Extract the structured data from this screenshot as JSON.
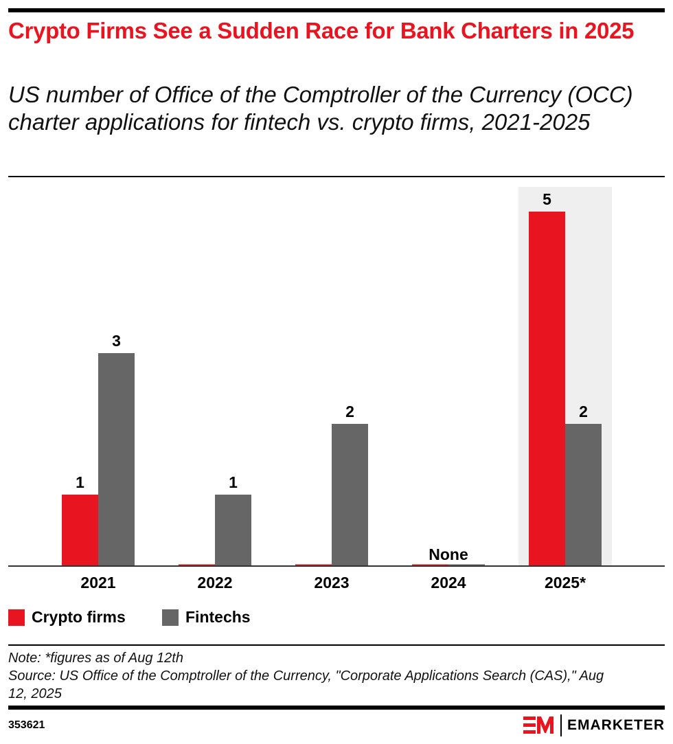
{
  "title": "Crypto Firms See a Sudden Race for Bank Charters in 2025",
  "subtitle": "US number of Office of the Comptroller of the Currency (OCC) charter applications for fintech vs. crypto firms, 2021-2025",
  "chart_data": {
    "type": "bar",
    "categories": [
      "2021",
      "2022",
      "2023",
      "2024",
      "2025*"
    ],
    "series": [
      {
        "name": "Crypto firms",
        "color": "#e8141f",
        "values": [
          1,
          0,
          0,
          0,
          5
        ],
        "labels": [
          "1",
          "",
          "",
          "",
          "5"
        ]
      },
      {
        "name": "Fintechs",
        "color": "#666666",
        "values": [
          3,
          1,
          2,
          0,
          2
        ],
        "labels": [
          "3",
          "1",
          "2",
          "",
          "2"
        ]
      }
    ],
    "annotations": [
      {
        "category": "2024",
        "text": "None"
      }
    ],
    "highlight_category": "2025*",
    "highlight_color": "#efefef",
    "ylim": [
      0,
      5.3
    ],
    "grid": false,
    "legend": "bottom-left"
  },
  "notes": {
    "note": "Note: *figures as of Aug 12th",
    "source": "Source: US Office of the Comptroller of the Currency, \"Corporate Applications Search (CAS),\" Aug 12, 2025"
  },
  "chart_id": "353621",
  "brand": "EMARKETER"
}
